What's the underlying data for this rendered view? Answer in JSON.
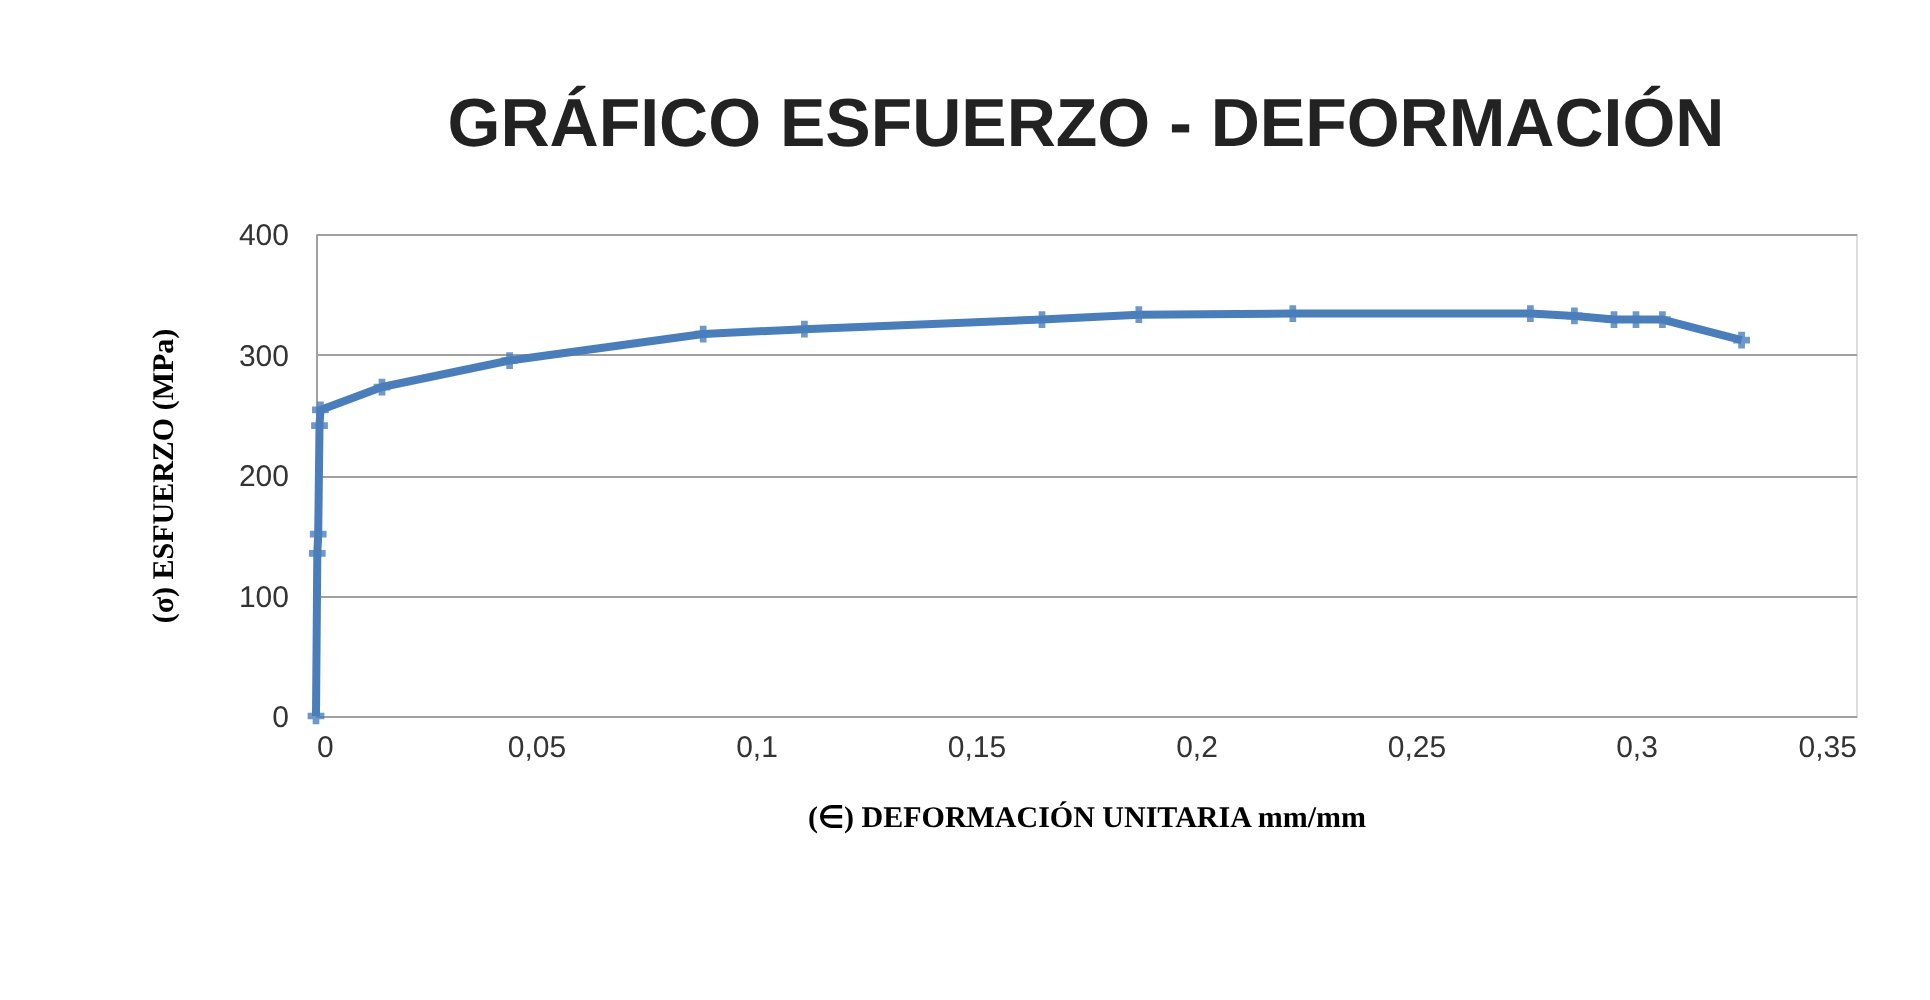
{
  "chart_data": {
    "type": "line",
    "title": "GRÁFICO ESFUERZO - DEFORMACIÓN",
    "xlabel": "(∈)  DEFORMACIÓN UNITARIA mm/mm",
    "ylabel": "(σ)  ESFUERZO (MPa)",
    "x": [
      0,
      0.0003,
      0.0005,
      0.0008,
      0.001,
      0.015,
      0.044,
      0.088,
      0.111,
      0.165,
      0.187,
      0.222,
      0.276,
      0.286,
      0.295,
      0.3,
      0.306,
      0.324
    ],
    "series": [
      {
        "color": "#4a7ebb",
        "values": [
          0,
          135,
          151,
          241,
          254,
          273,
          295,
          317,
          321,
          329,
          333,
          334,
          334,
          332,
          329,
          329,
          329,
          312
        ]
      }
    ],
    "xlim": [
      0,
      0.35
    ],
    "xticks": [
      0,
      {
        "value": 0.05,
        "label": "0,05"
      },
      {
        "value": 0.1,
        "label": "0,1"
      },
      {
        "value": 0.15,
        "label": "0,15"
      },
      {
        "value": 0.2,
        "label": "0,2"
      },
      {
        "value": 0.25,
        "label": "0,25"
      },
      {
        "value": 0.3,
        "label": "0,3"
      },
      {
        "value": 0.35,
        "label": "0,35"
      }
    ],
    "ylim": [
      0,
      400
    ],
    "yticks": [
      0,
      100,
      200,
      300,
      400
    ],
    "grid": "y",
    "marker": "cross",
    "line_style": "solid"
  }
}
